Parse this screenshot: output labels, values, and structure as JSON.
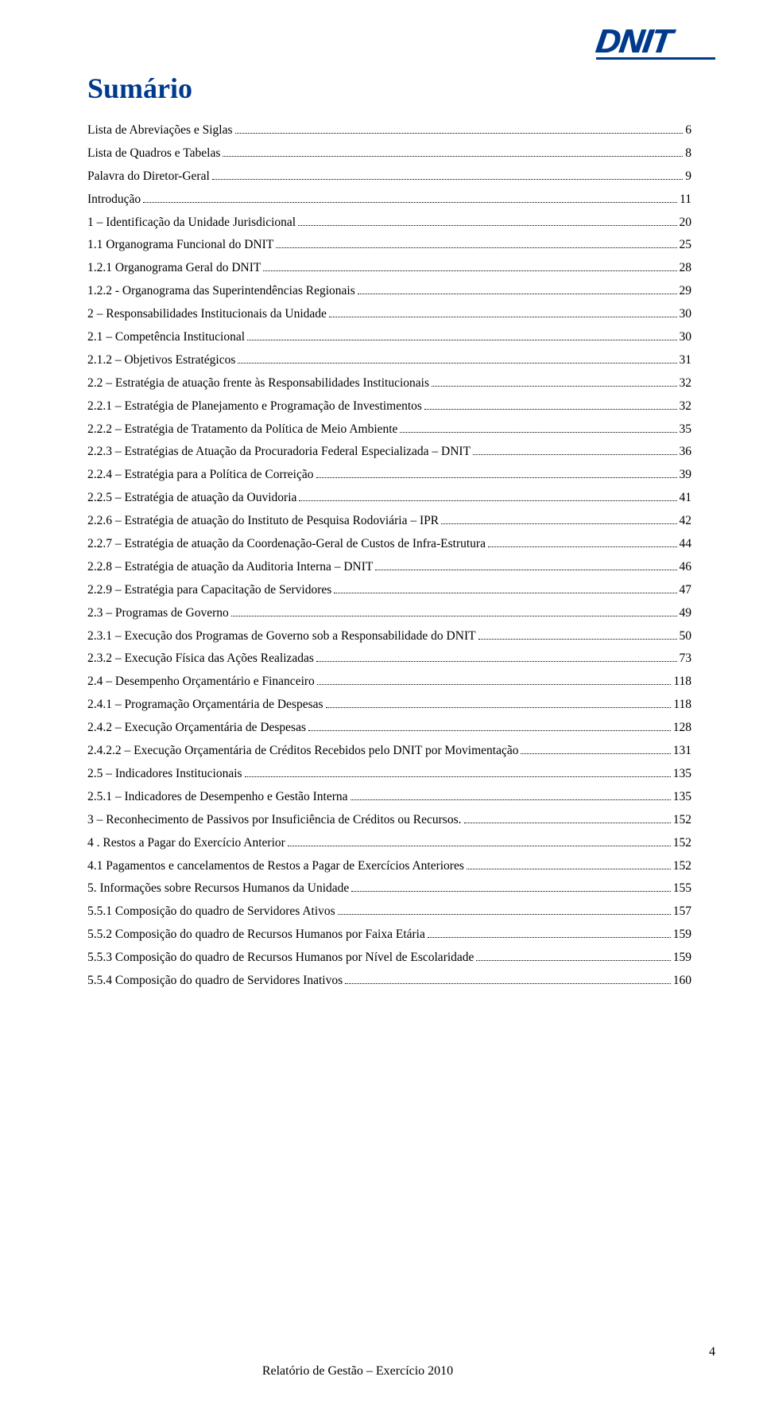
{
  "logo_text": "DNIT",
  "title": "Sumário",
  "toc": [
    {
      "label": "Lista de Abreviações e Siglas",
      "page": "6"
    },
    {
      "label": "Lista de Quadros e Tabelas",
      "page": "8"
    },
    {
      "label": "Palavra do Diretor-Geral",
      "page": "9"
    },
    {
      "label": "Introdução",
      "page": "11"
    },
    {
      "label": "1 – Identificação da Unidade Jurisdicional",
      "page": "20"
    },
    {
      "label": "1.1 Organograma Funcional do DNIT",
      "page": "25"
    },
    {
      "label": "1.2.1 Organograma Geral do DNIT",
      "page": "28"
    },
    {
      "label": "1.2.2 - Organograma das Superintendências Regionais",
      "page": "29"
    },
    {
      "label": "2 – Responsabilidades Institucionais da Unidade",
      "page": "30"
    },
    {
      "label": "2.1 – Competência Institucional",
      "page": "30"
    },
    {
      "label": "2.1.2 – Objetivos Estratégicos",
      "page": "31"
    },
    {
      "label": "2.2 – Estratégia de atuação frente às Responsabilidades Institucionais",
      "page": "32"
    },
    {
      "label": "2.2.1 – Estratégia de Planejamento e Programação de Investimentos",
      "page": "32"
    },
    {
      "label": "2.2.2 – Estratégia de Tratamento da Política de Meio Ambiente",
      "page": "35"
    },
    {
      "label": "2.2.3 – Estratégias de Atuação da Procuradoria Federal Especializada – DNIT",
      "page": "36"
    },
    {
      "label": "2.2.4 – Estratégia para a Política de Correição",
      "page": "39"
    },
    {
      "label": "2.2.5 – Estratégia de atuação da Ouvidoria",
      "page": "41"
    },
    {
      "label": "2.2.6 – Estratégia de atuação do Instituto de Pesquisa Rodoviária – IPR",
      "page": "42"
    },
    {
      "label": "2.2.7 – Estratégia de atuação da Coordenação-Geral de Custos de Infra-Estrutura",
      "page": "44"
    },
    {
      "label": "2.2.8 – Estratégia de atuação da Auditoria Interna – DNIT",
      "page": "46"
    },
    {
      "label": "2.2.9 – Estratégia para Capacitação de Servidores",
      "page": "47"
    },
    {
      "label": "2.3 – Programas de Governo",
      "page": "49"
    },
    {
      "label": "2.3.1 – Execução dos Programas de Governo sob a Responsabilidade do DNIT",
      "page": "50"
    },
    {
      "label": "2.3.2 – Execução Física das Ações Realizadas",
      "page": "73"
    },
    {
      "label": "2.4 – Desempenho Orçamentário e Financeiro",
      "page": "118"
    },
    {
      "label": "2.4.1 – Programação Orçamentária de Despesas",
      "page": "118"
    },
    {
      "label": "2.4.2 – Execução Orçamentária de Despesas",
      "page": "128"
    },
    {
      "label": "2.4.2.2 – Execução Orçamentária de Créditos Recebidos pelo DNIT por Movimentação",
      "page": "131"
    },
    {
      "label": "2.5 – Indicadores Institucionais",
      "page": "135"
    },
    {
      "label": "2.5.1 – Indicadores de Desempenho e Gestão Interna",
      "page": "135"
    },
    {
      "label": "3 – Reconhecimento de Passivos por Insuficiência de Créditos ou Recursos.",
      "page": "152"
    },
    {
      "label": "4 . Restos a Pagar do Exercício Anterior",
      "page": "152"
    },
    {
      "label": "4.1 Pagamentos e cancelamentos de Restos a Pagar de Exercícios Anteriores",
      "page": "152"
    },
    {
      "label": "5. Informações sobre Recursos Humanos da Unidade",
      "page": "155"
    },
    {
      "label": "5.5.1 Composição do quadro de Servidores Ativos",
      "page": "157"
    },
    {
      "label": "5.5.2 Composição do quadro de Recursos Humanos por Faixa Etária",
      "page": "159"
    },
    {
      "label": "5.5.3 Composição do quadro de Recursos Humanos por Nível de Escolaridade",
      "page": "159"
    },
    {
      "label": "5.5.4 Composição do quadro de Servidores Inativos",
      "page": "160"
    }
  ],
  "footer_text": "Relatório de Gestão – Exercício 2010",
  "page_number": "4"
}
